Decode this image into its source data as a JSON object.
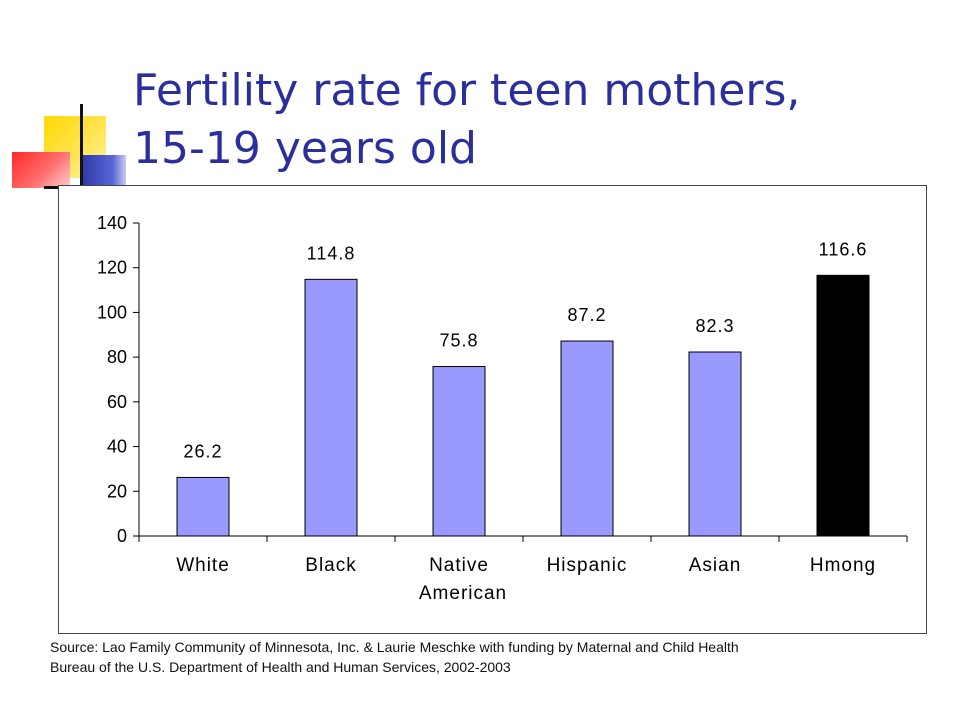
{
  "slide": {
    "title_line1": "Fertility rate for teen mothers,",
    "title_line2": "15-19 years old",
    "source_line1": "Source: Lao Family Community of Minnesota, Inc. & Laurie Meschke with funding by Maternal and Child Health",
    "source_line2": "Bureau of the U.S. Department of Health and Human Services, 2002-2003"
  },
  "chart_data": {
    "type": "bar",
    "title": "",
    "xlabel": "",
    "ylabel": "",
    "ylim": [
      0,
      140
    ],
    "yticks": [
      0,
      20,
      40,
      60,
      80,
      100,
      120,
      140
    ],
    "categories": [
      "White",
      "Black",
      "Native American",
      "Hispanic",
      "Asian",
      "Hmong"
    ],
    "category_label_lines": [
      [
        "White"
      ],
      [
        "Black"
      ],
      [
        "Native",
        "American"
      ],
      [
        "Hispanic"
      ],
      [
        "Asian"
      ],
      [
        "Hmong"
      ]
    ],
    "values": [
      26.2,
      114.8,
      75.8,
      87.2,
      82.3,
      116.6
    ],
    "data_labels": [
      "26.2",
      "114.8",
      "75.8",
      "87.2",
      "82.3",
      "116.6"
    ],
    "bar_colors": [
      "#9999ff",
      "#9999ff",
      "#9999ff",
      "#9999ff",
      "#9999ff",
      "#000000"
    ],
    "grid": false,
    "legend": "none"
  }
}
